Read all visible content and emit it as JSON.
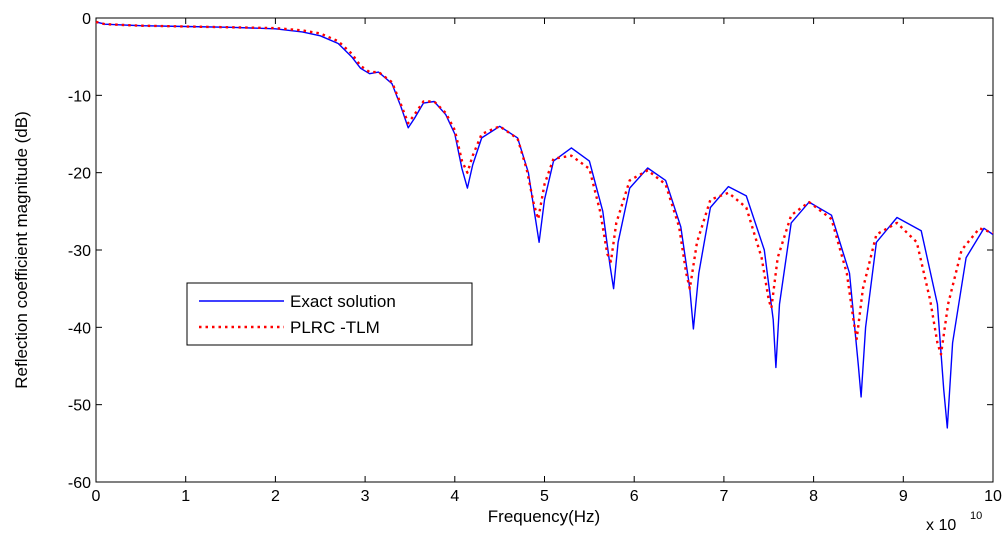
{
  "chart_data": {
    "type": "line",
    "title": "",
    "xlabel": "Frequency(Hz)",
    "ylabel": "Reflection coefficient magnitude (dB)",
    "x_multiplier_label": "x 10",
    "x_multiplier_exponent": "10",
    "xlim": [
      0,
      10
    ],
    "ylim": [
      -60,
      0
    ],
    "xticks": [
      "0",
      "1",
      "2",
      "3",
      "4",
      "5",
      "6",
      "7",
      "8",
      "9",
      "10"
    ],
    "yticks": [
      "0",
      "-10",
      "-20",
      "-30",
      "-40",
      "-50",
      "-60"
    ],
    "grid": false,
    "legend_position": "left-center",
    "series": [
      {
        "name": "Exact solution",
        "color": "#0000ff",
        "style": "solid",
        "x": [
          0.0,
          0.1,
          0.5,
          1.0,
          1.5,
          2.0,
          2.3,
          2.5,
          2.7,
          2.85,
          2.95,
          3.05,
          3.15,
          3.3,
          3.4,
          3.48,
          3.55,
          3.65,
          3.77,
          3.9,
          4.0,
          4.08,
          4.14,
          4.2,
          4.3,
          4.5,
          4.7,
          4.82,
          4.9,
          4.94,
          5.0,
          5.1,
          5.3,
          5.5,
          5.65,
          5.73,
          5.77,
          5.82,
          5.95,
          6.15,
          6.35,
          6.52,
          6.62,
          6.66,
          6.72,
          6.85,
          7.05,
          7.25,
          7.45,
          7.55,
          7.58,
          7.62,
          7.75,
          7.95,
          8.2,
          8.4,
          8.5,
          8.53,
          8.58,
          8.7,
          8.93,
          9.2,
          9.38,
          9.45,
          9.49,
          9.55,
          9.7,
          9.9,
          10.0
        ],
        "y": [
          -0.5,
          -0.8,
          -1.0,
          -1.1,
          -1.2,
          -1.4,
          -1.8,
          -2.3,
          -3.3,
          -5.0,
          -6.5,
          -7.2,
          -7.0,
          -8.5,
          -11.5,
          -14.2,
          -13.0,
          -11.0,
          -10.8,
          -12.5,
          -15.0,
          -19.5,
          -22.0,
          -19.0,
          -15.5,
          -14.0,
          -15.5,
          -20.0,
          -26.0,
          -29.0,
          -23.5,
          -18.5,
          -16.8,
          -18.5,
          -25.0,
          -32.0,
          -35.0,
          -29.0,
          -22.0,
          -19.4,
          -21.0,
          -27.0,
          -35.0,
          -40.2,
          -33.0,
          -24.5,
          -21.8,
          -23.0,
          -30.0,
          -39.0,
          -45.2,
          -37.0,
          -26.5,
          -23.8,
          -25.5,
          -33.0,
          -45.0,
          -49.0,
          -40.0,
          -29.0,
          -25.8,
          -27.5,
          -37.0,
          -48.0,
          -53.0,
          -42.0,
          -31.0,
          -27.2,
          -28.0
        ]
      },
      {
        "name": "PLRC -TLM",
        "color": "#ff0000",
        "style": "dotted",
        "x": [
          0.0,
          0.1,
          0.5,
          1.0,
          1.5,
          2.0,
          2.3,
          2.5,
          2.7,
          2.85,
          2.95,
          3.05,
          3.15,
          3.3,
          3.4,
          3.48,
          3.55,
          3.65,
          3.77,
          3.9,
          4.0,
          4.08,
          4.14,
          4.2,
          4.3,
          4.5,
          4.7,
          4.8,
          4.88,
          4.93,
          5.0,
          5.1,
          5.3,
          5.5,
          5.62,
          5.7,
          5.74,
          5.8,
          5.95,
          6.15,
          6.35,
          6.5,
          6.58,
          6.62,
          6.7,
          6.85,
          7.05,
          7.25,
          7.42,
          7.5,
          7.53,
          7.6,
          7.75,
          7.95,
          8.2,
          8.37,
          8.45,
          8.48,
          8.55,
          8.7,
          8.93,
          9.15,
          9.3,
          9.38,
          9.42,
          9.5,
          9.65,
          9.85,
          10.0
        ],
        "y": [
          -0.5,
          -0.8,
          -1.0,
          -1.1,
          -1.2,
          -1.3,
          -1.6,
          -2.0,
          -3.0,
          -4.6,
          -6.2,
          -7.0,
          -7.0,
          -8.3,
          -11.2,
          -13.6,
          -12.5,
          -10.8,
          -10.8,
          -12.3,
          -14.5,
          -18.5,
          -20.0,
          -17.8,
          -15.0,
          -14.0,
          -15.6,
          -19.5,
          -24.0,
          -26.0,
          -21.5,
          -18.2,
          -17.8,
          -19.5,
          -25.0,
          -30.5,
          -31.5,
          -26.5,
          -21.0,
          -19.7,
          -21.5,
          -27.0,
          -33.0,
          -35.0,
          -29.0,
          -23.5,
          -22.6,
          -24.5,
          -31.0,
          -36.5,
          -37.5,
          -31.0,
          -25.5,
          -23.8,
          -26.0,
          -33.0,
          -39.5,
          -41.5,
          -35.0,
          -28.0,
          -26.5,
          -29.0,
          -36.5,
          -42.0,
          -43.5,
          -37.0,
          -30.0,
          -27.2,
          -27.8
        ]
      }
    ]
  }
}
